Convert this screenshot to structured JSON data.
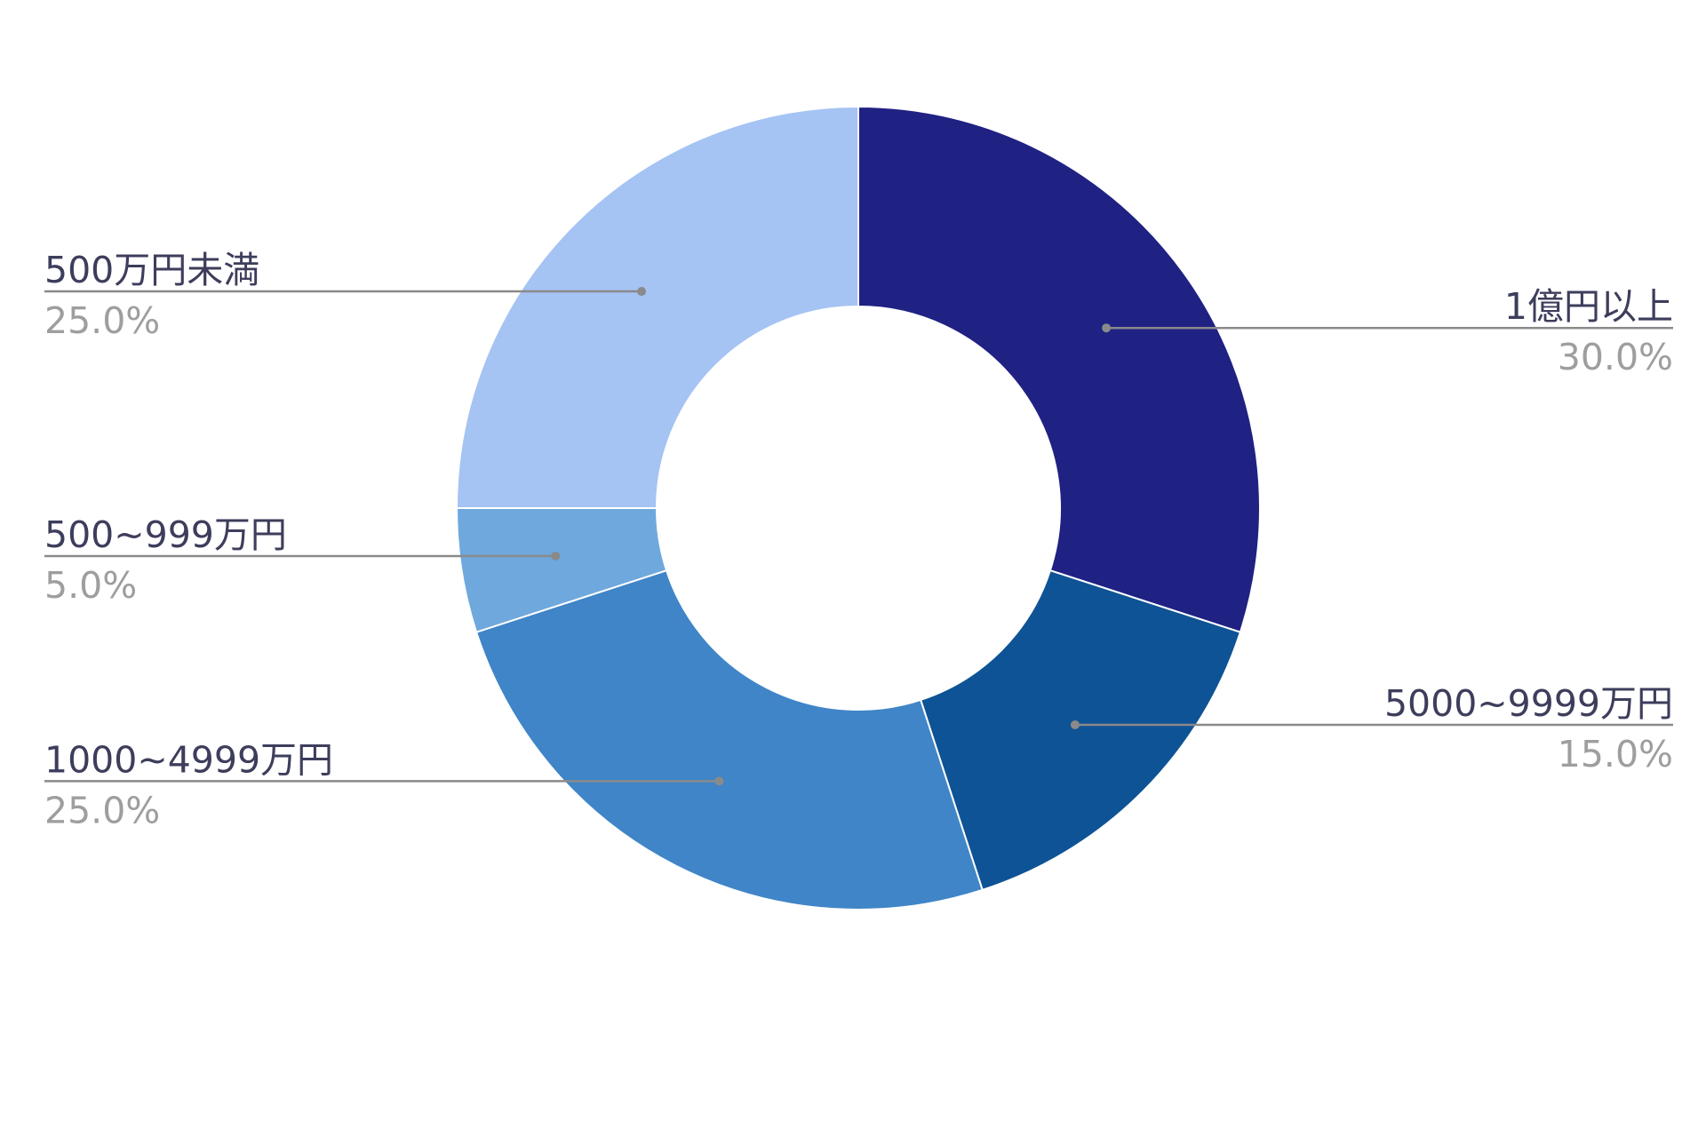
{
  "colors": {
    "leader_line": "#8a8a8a",
    "label_text": "#3d3d5c",
    "percent_text": "#9e9e9e",
    "separator": "#ffffff"
  },
  "chart_data": {
    "type": "pie",
    "variant": "donut",
    "slices": [
      {
        "label": "1億円以上",
        "value": 30.0,
        "value_label": "30.0%",
        "color": "#1f2183",
        "label_side": "right"
      },
      {
        "label": "5000~9999万円",
        "value": 15.0,
        "value_label": "15.0%",
        "color": "#0e5395",
        "label_side": "right"
      },
      {
        "label": "1000~4999万円",
        "value": 25.0,
        "value_label": "25.0%",
        "color": "#3f85c7",
        "label_side": "left"
      },
      {
        "label": "500~999万円",
        "value": 5.0,
        "value_label": "5.0%",
        "color": "#6fa8dd",
        "label_side": "left"
      },
      {
        "label": "500万円未満",
        "value": 25.0,
        "value_label": "25.0%",
        "color": "#a5c3f3",
        "label_side": "left"
      }
    ],
    "start_angle": "top",
    "direction": "clockwise",
    "legend": "none",
    "labels": "outside-with-leader-lines"
  }
}
